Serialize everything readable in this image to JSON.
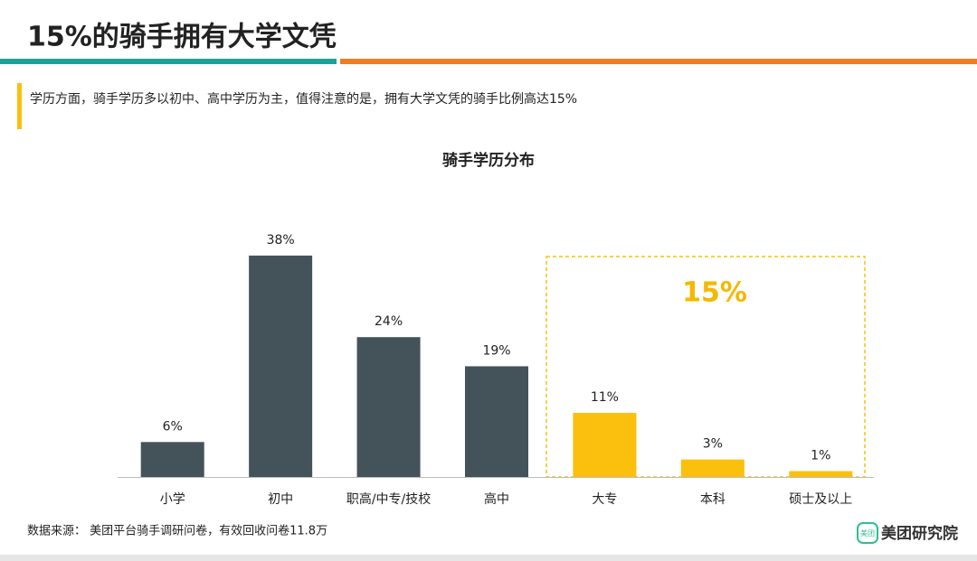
{
  "header": {
    "title": "15%的骑手拥有大学文凭",
    "subtitle": "学历方面，骑手学历多以初中、高中学历为主，值得注意的是，拥有大学文凭的骑手比例高达15%"
  },
  "chart_data": {
    "type": "bar",
    "title": "骑手学历分布",
    "categories": [
      "小学",
      "初中",
      "职高/中专/技校",
      "高中",
      "大专",
      "本科",
      "硕士及以上"
    ],
    "values": [
      6,
      38,
      24,
      19,
      11,
      3,
      1
    ],
    "value_labels": [
      "6%",
      "38%",
      "24%",
      "19%",
      "11%",
      "3%",
      "1%"
    ],
    "colors": [
      "#44535a",
      "#44535a",
      "#44535a",
      "#44535a",
      "#fbbf0e",
      "#fbbf0e",
      "#fbbf0e"
    ],
    "annotation": "15%"
  },
  "footer": {
    "source": "数据来源： 美团平台骑手调研问卷，有效回收问卷11.8万",
    "logo": "美团研究院",
    "logo_icon": "美团"
  }
}
